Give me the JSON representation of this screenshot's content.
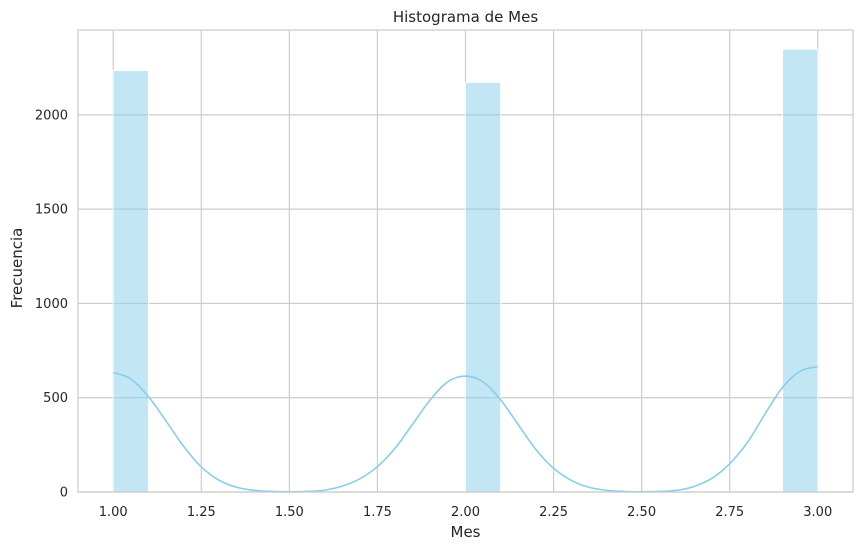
{
  "chart_data": {
    "type": "bar",
    "title": "Histograma de Mes",
    "xlabel": "Mes",
    "ylabel": "Frecuencia",
    "xlim": [
      0.9,
      3.1
    ],
    "ylim": [
      0,
      2450
    ],
    "xticks": [
      1.0,
      1.25,
      1.5,
      1.75,
      2.0,
      2.25,
      2.5,
      2.75,
      3.0
    ],
    "xtick_labels": [
      "1.00",
      "1.25",
      "1.50",
      "1.75",
      "2.00",
      "2.25",
      "2.50",
      "2.75",
      "3.00"
    ],
    "yticks": [
      0,
      500,
      1000,
      1500,
      2000
    ],
    "ytick_labels": [
      "0",
      "500",
      "1000",
      "1500",
      "2000"
    ],
    "grid": true,
    "bars": [
      {
        "x0": 1.0,
        "x1": 1.1,
        "value": 2235
      },
      {
        "x0": 2.0,
        "x1": 2.1,
        "value": 2172
      },
      {
        "x0": 2.9,
        "x1": 3.0,
        "value": 2348
      }
    ],
    "kde": {
      "x": [
        1.0,
        1.05,
        1.1,
        1.15,
        1.2,
        1.25,
        1.3,
        1.35,
        1.4,
        1.45,
        1.5,
        1.55,
        1.6,
        1.65,
        1.7,
        1.75,
        1.8,
        1.85,
        1.9,
        1.95,
        2.0,
        2.05,
        2.1,
        2.15,
        2.2,
        2.25,
        2.3,
        2.35,
        2.4,
        2.45,
        2.5,
        2.55,
        2.6,
        2.65,
        2.7,
        2.75,
        2.8,
        2.85,
        2.9,
        2.95,
        3.0
      ],
      "y": [
        633,
        600,
        505,
        376,
        242,
        133,
        63,
        25,
        9,
        3,
        1,
        3,
        10,
        31,
        70,
        135,
        232,
        360,
        489,
        585,
        615,
        584,
        488,
        356,
        225,
        126,
        62,
        25,
        9,
        3,
        1,
        3,
        9,
        30,
        73,
        150,
        262,
        413,
        555,
        640,
        665
      ]
    },
    "colors": {
      "bar_fill": "#87ceeb",
      "bar_opacity": 0.5,
      "kde_line": "#87ceeb",
      "grid": "#cccccc",
      "spine": "#cccccc"
    }
  }
}
